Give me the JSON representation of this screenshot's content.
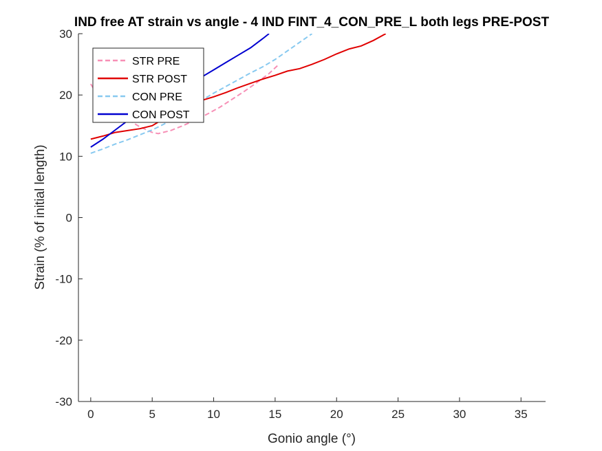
{
  "chart_data": {
    "type": "line",
    "title": "IND free AT strain vs angle - 4 IND FINT_4_CON_PRE_L both legs PRE-POST",
    "xlabel": "Gonio angle (°)",
    "ylabel": "Strain (% of initial length)",
    "xlim": [
      -1,
      37
    ],
    "ylim": [
      -30,
      30
    ],
    "xticks": [
      0,
      5,
      10,
      15,
      20,
      25,
      30,
      35
    ],
    "yticks": [
      -30,
      -20,
      -10,
      0,
      10,
      20,
      30
    ],
    "grid": false,
    "legend_position": "top-left",
    "series": [
      {
        "name": "STR PRE",
        "color": "#f78fb6",
        "style": "dashed",
        "x": [
          0,
          0.3,
          1.0,
          2.0,
          3.0,
          4.0,
          5.0,
          5.5,
          6.5,
          7.5,
          8.5,
          9.5,
          10.5,
          11.5,
          12.5,
          13.5,
          14.5,
          15.3
        ],
        "y": [
          21.8,
          20.8,
          19.0,
          17.3,
          16.0,
          14.8,
          13.9,
          13.7,
          14.2,
          15.0,
          15.9,
          16.9,
          18.0,
          19.3,
          20.6,
          22.0,
          23.5,
          25.0
        ]
      },
      {
        "name": "STR POST",
        "color": "#e00000",
        "style": "solid",
        "x": [
          0,
          1,
          2,
          3,
          4,
          5,
          6,
          7,
          8,
          9,
          10,
          11,
          12,
          13,
          14,
          15,
          16,
          17,
          18,
          19,
          20,
          21,
          22,
          23,
          24
        ],
        "y": [
          12.8,
          13.3,
          13.9,
          14.2,
          14.5,
          15.0,
          16.2,
          17.3,
          18.3,
          19.1,
          19.7,
          20.4,
          21.2,
          21.9,
          22.6,
          23.2,
          23.9,
          24.3,
          25.0,
          25.8,
          26.7,
          27.5,
          28.0,
          28.9,
          30.0
        ]
      },
      {
        "name": "CON PRE",
        "color": "#87c9f0",
        "style": "dashed",
        "x": [
          0,
          1,
          2,
          3,
          4,
          5,
          6,
          7,
          8,
          9,
          10,
          11,
          12,
          13,
          14,
          15,
          16,
          17,
          18
        ],
        "y": [
          10.5,
          11.2,
          12.0,
          12.7,
          13.5,
          14.3,
          15.3,
          16.6,
          17.9,
          19.1,
          20.3,
          21.4,
          22.5,
          23.6,
          24.6,
          25.8,
          27.2,
          28.6,
          30.0
        ]
      },
      {
        "name": "CON POST",
        "color": "#0000d0",
        "style": "solid",
        "x": [
          0,
          1,
          2,
          3,
          4,
          5,
          6,
          7,
          8,
          9,
          10,
          11,
          12,
          13,
          14,
          14.5
        ],
        "y": [
          11.5,
          12.8,
          14.3,
          15.8,
          17.2,
          18.3,
          19.4,
          20.4,
          21.6,
          22.9,
          24.1,
          25.3,
          26.5,
          27.7,
          29.2,
          30.0
        ]
      }
    ]
  }
}
